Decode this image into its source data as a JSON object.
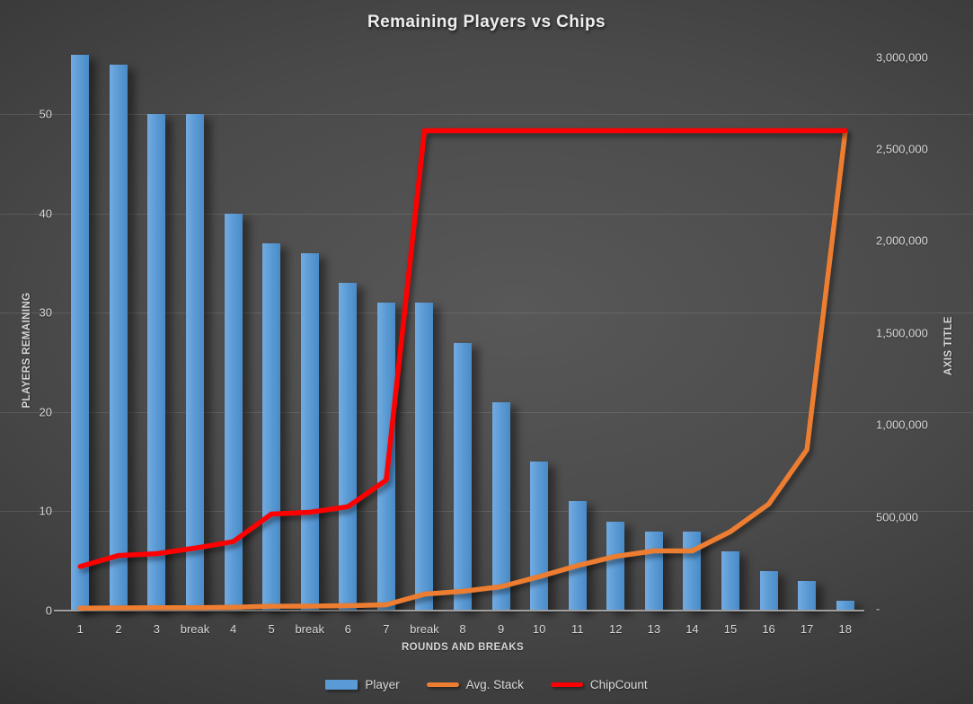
{
  "title": "Remaining Players vs Chips",
  "axes": {
    "left": {
      "title": "PLAYERS REMAINING",
      "ticks": [
        {
          "label": "0",
          "value": 0
        },
        {
          "label": "10",
          "value": 10
        },
        {
          "label": "20",
          "value": 20
        },
        {
          "label": "30",
          "value": 30
        },
        {
          "label": "40",
          "value": 40
        },
        {
          "label": "50",
          "value": 50
        }
      ]
    },
    "right": {
      "title": "AXIS TITLE",
      "ticks": [
        {
          "label": "3,000,000",
          "value": 3000000
        },
        {
          "label": "2,500,000",
          "value": 2500000
        },
        {
          "label": "2,000,000",
          "value": 2000000
        },
        {
          "label": "1,500,000",
          "value": 1500000
        },
        {
          "label": "1,000,000",
          "value": 1000000
        },
        {
          "label": "500,000",
          "value": 500000
        },
        {
          "label": "-",
          "value": 0
        }
      ]
    },
    "x": {
      "title": "ROUNDS AND BREAKS"
    }
  },
  "legend": [
    {
      "label": "Player",
      "marker": "bar",
      "color": "#5b9bd5"
    },
    {
      "label": "Avg. Stack",
      "marker": "line",
      "color": "#ed7d31"
    },
    {
      "label": "ChipCount",
      "marker": "line",
      "color": "#ff0000"
    }
  ],
  "chart_data": {
    "type": "bar",
    "subtype": "combo-bar-line-dual-axis",
    "title": "Remaining Players vs Chips",
    "xlabel": "ROUNDS AND BREAKS",
    "categories": [
      "1",
      "2",
      "3",
      "break",
      "4",
      "5",
      "break",
      "6",
      "7",
      "break",
      "8",
      "9",
      "10",
      "11",
      "12",
      "13",
      "14",
      "15",
      "16",
      "17",
      "18"
    ],
    "series": [
      {
        "name": "Player",
        "type": "bar",
        "axis": "left",
        "color": "#5b9bd5",
        "values": [
          56,
          55,
          50,
          50,
          40,
          37,
          36,
          33,
          31,
          31,
          27,
          21,
          15,
          11,
          9,
          8,
          8,
          6,
          4,
          3,
          1
        ]
      },
      {
        "name": "Avg. Stack",
        "type": "line",
        "axis": "right",
        "color": "#ed7d31",
        "values": [
          4000,
          5000,
          6000,
          6500,
          9000,
          14000,
          14500,
          17000,
          22000,
          80000,
          95000,
          120000,
          175000,
          235000,
          285000,
          315000,
          315000,
          420000,
          570000,
          865000,
          2590000
        ]
      },
      {
        "name": "ChipCount",
        "type": "line",
        "axis": "right",
        "color": "#ff0000",
        "values": [
          230000,
          290000,
          300000,
          330000,
          365000,
          515000,
          525000,
          555000,
          700000,
          2600000,
          2600000,
          2600000,
          2600000,
          2600000,
          2600000,
          2600000,
          2600000,
          2600000,
          2600000,
          2600000,
          2600000
        ]
      }
    ],
    "left_axis": {
      "label": "PLAYERS REMAINING",
      "range": [
        0,
        56
      ],
      "gridline_step": 10
    },
    "right_axis": {
      "label": "AXIS TITLE",
      "range": [
        0,
        3022000
      ],
      "tick_step": 500000
    },
    "grid": true,
    "legend_position": "bottom",
    "background": "dark-gray-gradient"
  }
}
